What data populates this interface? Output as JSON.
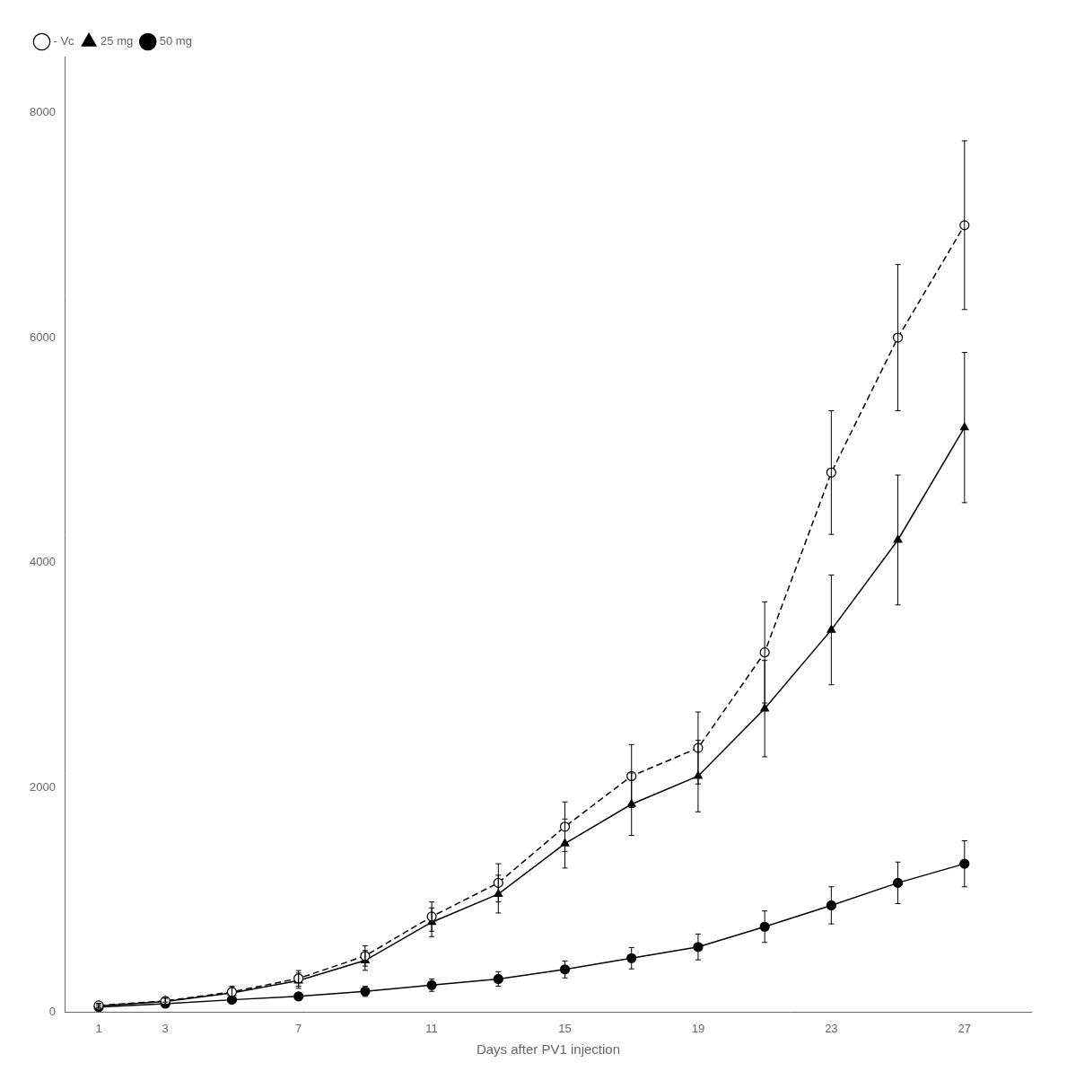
{
  "chart_data": {
    "type": "line",
    "x": [
      1,
      3,
      5,
      7,
      9,
      11,
      13,
      15,
      17,
      19,
      21,
      23,
      25,
      27
    ],
    "series": [
      {
        "name": "- Vc",
        "color": "#000000",
        "marker": "open_circle",
        "line_style": "dashed",
        "values": [
          60,
          100,
          180,
          300,
          500,
          850,
          1150,
          1650,
          2100,
          2350,
          3200,
          4800,
          6000,
          7000
        ],
        "errors": [
          20,
          30,
          50,
          70,
          90,
          130,
          170,
          220,
          280,
          320,
          450,
          550,
          650,
          750
        ]
      },
      {
        "name": "25 mg",
        "color": "#000000",
        "marker": "triangle",
        "line_style": "solid",
        "values": [
          55,
          95,
          170,
          280,
          460,
          800,
          1050,
          1500,
          1850,
          2100,
          2700,
          3400,
          4200,
          5200
        ],
        "errors": [
          18,
          28,
          48,
          68,
          88,
          128,
          168,
          218,
          278,
          318,
          428,
          488,
          578,
          668
        ]
      },
      {
        "name": "50 mg",
        "color": "#000000",
        "marker": "circle",
        "line_style": "solid",
        "values": [
          45,
          75,
          110,
          140,
          185,
          240,
          295,
          380,
          480,
          580,
          760,
          950,
          1150,
          1320
        ],
        "errors": [
          10,
          15,
          25,
          35,
          45,
          55,
          65,
          75,
          95,
          115,
          140,
          165,
          185,
          205
        ]
      }
    ],
    "xlabel": "Days after PV1 injection",
    "xlim": [
      0,
      29
    ],
    "xticks": [
      1,
      3,
      7,
      11,
      15,
      19,
      23,
      27
    ],
    "ylim": [
      0,
      8500
    ],
    "yticks": [
      0,
      2000,
      4000,
      6000,
      8000
    ],
    "legend": "upper left",
    "grid": false
  }
}
